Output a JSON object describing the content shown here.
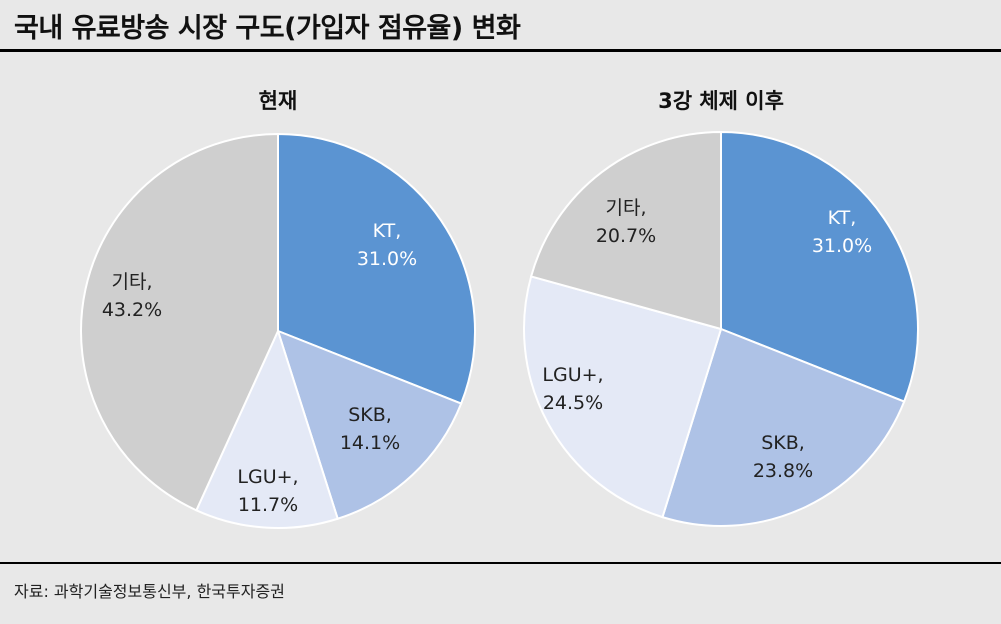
{
  "header": {
    "title": "국내 유료방송 시장 구도(가입자 점유율) 변화"
  },
  "footer": {
    "source": "자료: 과학기술정보통신부, 한국투자증권"
  },
  "colors": {
    "KT": "#5b94d2",
    "SKB": "#aec2e6",
    "LGU+": "#e4e9f6",
    "기타": "#cfcfcf"
  },
  "chart_data": [
    {
      "type": "pie",
      "title": "현재",
      "slices": [
        {
          "name": "KT",
          "value": 31.0,
          "label_name": "KT,",
          "label_value": "31.0%"
        },
        {
          "name": "SKB",
          "value": 14.1,
          "label_name": "SKB,",
          "label_value": "14.1%"
        },
        {
          "name": "LGU+",
          "value": 11.7,
          "label_name": "LGU+,",
          "label_value": "11.7%"
        },
        {
          "name": "기타",
          "value": 43.2,
          "label_name": "기타,",
          "label_value": "43.2%"
        }
      ]
    },
    {
      "type": "pie",
      "title": "3강 체제 이후",
      "slices": [
        {
          "name": "KT",
          "value": 31.0,
          "label_name": "KT,",
          "label_value": "31.0%"
        },
        {
          "name": "SKB",
          "value": 23.8,
          "label_name": "SKB,",
          "label_value": "23.8%"
        },
        {
          "name": "LGU+",
          "value": 24.5,
          "label_name": "LGU+,",
          "label_value": "24.5%"
        },
        {
          "name": "기타",
          "value": 20.7,
          "label_name": "기타,",
          "label_value": "20.7%"
        }
      ]
    }
  ]
}
